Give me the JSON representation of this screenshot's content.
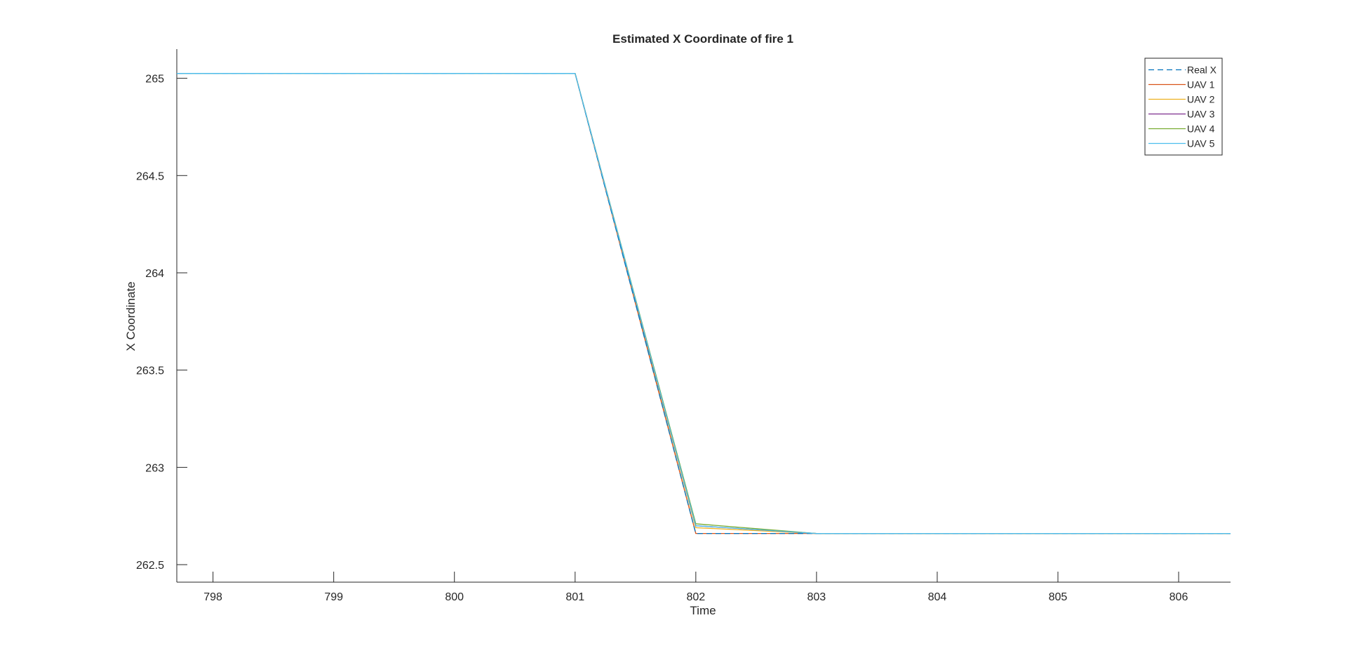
{
  "chart_data": {
    "type": "line",
    "title": "Estimated X Coordinate of fire 1",
    "xlabel": "Time",
    "ylabel": "X Coordinate",
    "xlim": [
      797.7,
      806.43
    ],
    "ylim": [
      262.41,
      265.15
    ],
    "xticks": [
      798,
      799,
      800,
      801,
      802,
      803,
      804,
      805,
      806
    ],
    "yticks": [
      262.5,
      263,
      263.5,
      264,
      264.5,
      265
    ],
    "ytick_labels": [
      "262.5",
      "263",
      "263.5",
      "264",
      "264.5",
      "265"
    ],
    "grid": false,
    "legend_position": "top-right",
    "series": [
      {
        "name": "Real X",
        "color": "#0072BD",
        "dash": true,
        "x": [
          797.7,
          801,
          802,
          803,
          806.43
        ],
        "y": [
          265.025,
          265.025,
          262.66,
          262.66,
          262.66
        ]
      },
      {
        "name": "UAV 1",
        "color": "#D95319",
        "dash": false,
        "x": [
          797.7,
          801,
          802,
          803,
          806.43
        ],
        "y": [
          265.025,
          265.025,
          262.66,
          262.66,
          262.66
        ]
      },
      {
        "name": "UAV 2",
        "color": "#EDB120",
        "dash": false,
        "x": [
          797.7,
          801,
          802,
          803,
          806.43
        ],
        "y": [
          265.025,
          265.025,
          262.69,
          262.66,
          262.66
        ]
      },
      {
        "name": "UAV 3",
        "color": "#7E2F8E",
        "dash": false,
        "x": [
          797.7,
          801,
          802,
          803,
          806.43
        ],
        "y": [
          265.025,
          265.025,
          262.7,
          262.66,
          262.66
        ]
      },
      {
        "name": "UAV 4",
        "color": "#77AC30",
        "dash": false,
        "x": [
          797.7,
          801,
          802,
          803,
          806.43
        ],
        "y": [
          265.025,
          265.025,
          262.71,
          262.66,
          262.66
        ]
      },
      {
        "name": "UAV 5",
        "color": "#4DBEEE",
        "dash": false,
        "x": [
          797.7,
          801,
          802,
          803,
          806.43
        ],
        "y": [
          265.025,
          265.025,
          262.7,
          262.66,
          262.66
        ]
      }
    ]
  }
}
